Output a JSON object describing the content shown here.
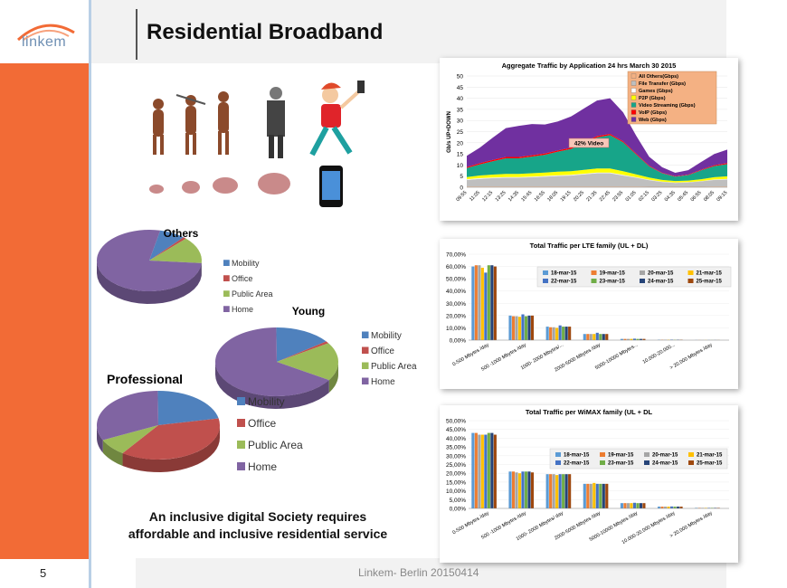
{
  "brand": {
    "logo_text": "linkem",
    "accent": "#f26b36"
  },
  "slide": {
    "title": "Residential Broadband",
    "page_number": "5",
    "footer": "Linkem- Berlin 20150414"
  },
  "caption": {
    "line1": "An inclusive digital Society requires",
    "line2": "affordable and inclusive residential service"
  },
  "illustration": {
    "icons": [
      "human-evolution-icon",
      "brain-growth-icon",
      "smartphone-icon"
    ]
  },
  "chart_data": [
    {
      "type": "area",
      "title": "Aggregate Traffic by Application 24 hrs March 30 2015",
      "ylabel": "Gb/s UP+DOWN",
      "ylim": [
        0,
        50
      ],
      "yticks": [
        0,
        5,
        10,
        15,
        20,
        25,
        30,
        35,
        40,
        45,
        50
      ],
      "x": [
        "09:55",
        "11:05",
        "12:15",
        "13:25",
        "14:35",
        "15:45",
        "16:55",
        "18:05",
        "19:15",
        "20:25",
        "21:35",
        "22:45",
        "23:55",
        "01:05",
        "02:15",
        "03:25",
        "04:35",
        "05:45",
        "06:55",
        "08:05",
        "09:15"
      ],
      "annotation": "42% Video",
      "series": [
        {
          "name": "All Others(Gbps)",
          "color": "#f4b183",
          "values": [
            0.3,
            0.3,
            0.3,
            0.3,
            0.3,
            0.3,
            0.3,
            0.3,
            0.3,
            0.3,
            0.3,
            0.3,
            0.3,
            0.3,
            0.2,
            0.2,
            0.2,
            0.2,
            0.2,
            0.3,
            0.3
          ]
        },
        {
          "name": "File Transfer (Gbps)",
          "color": "#bfbfbf",
          "values": [
            3,
            3.5,
            3.8,
            4,
            4,
            4.2,
            4.5,
            4.8,
            5,
            5.5,
            6,
            6,
            5,
            4,
            3,
            2.2,
            1.8,
            2,
            2.5,
            3,
            3.2
          ]
        },
        {
          "name": "Games (Gbps)",
          "color": "#ffffff",
          "values": [
            0.3,
            0.3,
            0.3,
            0.3,
            0.3,
            0.3,
            0.3,
            0.3,
            0.3,
            0.3,
            0.3,
            0.3,
            0.3,
            0.2,
            0.2,
            0.1,
            0.1,
            0.1,
            0.1,
            0.2,
            0.3
          ]
        },
        {
          "name": "P2P (Gbps)",
          "color": "#ffff00",
          "values": [
            1,
            1.2,
            1.3,
            1.4,
            1.4,
            1.5,
            1.5,
            1.6,
            1.6,
            1.7,
            1.8,
            1.8,
            1.6,
            1.3,
            1,
            0.8,
            0.7,
            0.7,
            0.8,
            1,
            1.1
          ]
        },
        {
          "name": "Video Streaming (Gbps)",
          "color": "#17a589",
          "values": [
            4,
            5,
            6,
            7,
            7,
            7.5,
            8,
            9,
            10,
            12,
            14,
            15,
            13,
            9,
            5,
            3,
            2,
            2.5,
            4,
            5,
            5.5
          ]
        },
        {
          "name": "VoIP (Gbps)",
          "color": "#ff0000",
          "values": [
            0.5,
            0.5,
            0.6,
            0.6,
            0.6,
            0.6,
            0.6,
            0.6,
            0.6,
            0.6,
            0.6,
            0.6,
            0.5,
            0.4,
            0.3,
            0.2,
            0.2,
            0.2,
            0.3,
            0.4,
            0.5
          ]
        },
        {
          "name": "Web (Gbps)",
          "color": "#7030a0",
          "values": [
            5,
            7,
            10,
            13,
            14,
            14,
            13,
            13,
            14,
            15,
            16,
            16,
            13,
            8,
            4,
            2.5,
            1.5,
            2,
            3.5,
            5,
            6
          ]
        }
      ]
    },
    {
      "type": "bar",
      "title": "Total Traffic per LTE family (UL + DL)",
      "ylim": [
        0,
        70
      ],
      "ytick_labels": [
        "0,00%",
        "10,00%",
        "20,00%",
        "30,00%",
        "40,00%",
        "50,00%",
        "60,00%",
        "70,00%"
      ],
      "categories": [
        "0-500 Mbytes /day",
        "500 -1000 Mbytes /day",
        "1000- 2000 Mbytes/...",
        "2000-5000 Mbytes /day",
        "5000-10000 Mbytes...",
        "10.000-20.000...",
        "> 20.000 Mbytes /day"
      ],
      "series": [
        {
          "name": "18-mar-15",
          "color": "#5b9bd5",
          "values": [
            60,
            20,
            11,
            5,
            1,
            0.3,
            0.1
          ]
        },
        {
          "name": "19-mar-15",
          "color": "#ed7d31",
          "values": [
            61,
            19.5,
            10.5,
            5,
            1,
            0.3,
            0.1
          ]
        },
        {
          "name": "20-mar-15",
          "color": "#a5a5a5",
          "values": [
            61,
            19.5,
            10.5,
            5,
            1,
            0.3,
            0.1
          ]
        },
        {
          "name": "21-mar-15",
          "color": "#ffc000",
          "values": [
            59,
            19,
            10,
            5,
            1,
            0.3,
            0.1
          ]
        },
        {
          "name": "22-mar-15",
          "color": "#4472c4",
          "values": [
            55,
            21,
            12,
            6,
            1.2,
            0.4,
            0.1
          ]
        },
        {
          "name": "23-mar-15",
          "color": "#70ad47",
          "values": [
            61,
            19.5,
            11,
            5,
            1,
            0.3,
            0.1
          ]
        },
        {
          "name": "24-mar-15",
          "color": "#264478",
          "values": [
            61,
            20,
            11,
            5,
            1,
            0.3,
            0.1
          ]
        },
        {
          "name": "25-mar-15",
          "color": "#9e480e",
          "values": [
            60,
            20,
            11,
            5,
            1,
            0.3,
            0.1
          ]
        }
      ]
    },
    {
      "type": "bar",
      "title": "Total Traffic per WiMAX family (UL + DL",
      "ylim": [
        0,
        50
      ],
      "ytick_labels": [
        "0,00%",
        "5,00%",
        "10,00%",
        "15,00%",
        "20,00%",
        "25,00%",
        "30,00%",
        "35,00%",
        "40,00%",
        "45,00%",
        "50,00%"
      ],
      "categories": [
        "0-500 Mbytes /day",
        "500 -1000 Mbytes /day",
        "1000- 2000 Mbytes/ day",
        "2000-5000 Mbytes /day",
        "5000-10000 Mbytes /day",
        "10.000-20.000 Mbytes /day",
        "> 20.000 Mbytes /day"
      ],
      "series": [
        {
          "name": "18-mar-15",
          "color": "#5b9bd5",
          "values": [
            43,
            21,
            19.5,
            14,
            3,
            1,
            0.3
          ]
        },
        {
          "name": "19-mar-15",
          "color": "#ed7d31",
          "values": [
            43,
            21,
            19.5,
            14,
            3,
            1,
            0.3
          ]
        },
        {
          "name": "20-mar-15",
          "color": "#a5a5a5",
          "values": [
            42,
            20.5,
            19.5,
            14,
            3,
            1,
            0.3
          ]
        },
        {
          "name": "21-mar-15",
          "color": "#ffc000",
          "values": [
            42,
            20,
            19,
            14.5,
            3,
            1,
            0.3
          ]
        },
        {
          "name": "22-mar-15",
          "color": "#4472c4",
          "values": [
            42,
            21,
            19.5,
            14,
            3.2,
            1.1,
            0.3
          ]
        },
        {
          "name": "23-mar-15",
          "color": "#70ad47",
          "values": [
            43,
            21,
            19.5,
            14,
            3,
            1,
            0.3
          ]
        },
        {
          "name": "24-mar-15",
          "color": "#264478",
          "values": [
            43,
            21,
            19.5,
            14,
            3,
            1,
            0.3
          ]
        },
        {
          "name": "25-mar-15",
          "color": "#9e480e",
          "values": [
            42,
            20.5,
            19.5,
            14,
            3,
            1,
            0.3
          ]
        }
      ]
    },
    {
      "type": "pie",
      "title": "Others",
      "categories": [
        "Mobility",
        "Office",
        "Public Area",
        "Home"
      ],
      "colors": [
        "#4f81bd",
        "#c0504d",
        "#9bbb59",
        "#8064a2"
      ],
      "values": [
        8,
        1,
        14,
        77
      ]
    },
    {
      "type": "pie",
      "title": "Young",
      "categories": [
        "Mobility",
        "Office",
        "Public Area",
        "Home"
      ],
      "colors": [
        "#4f81bd",
        "#c0504d",
        "#9bbb59",
        "#8064a2"
      ],
      "values": [
        15,
        1,
        18,
        66
      ]
    },
    {
      "type": "pie",
      "title": "Professional",
      "categories": [
        "Mobility",
        "Office",
        "Public Area",
        "Home"
      ],
      "colors": [
        "#4f81bd",
        "#c0504d",
        "#9bbb59",
        "#8064a2"
      ],
      "values": [
        22,
        38,
        8,
        32
      ]
    }
  ]
}
